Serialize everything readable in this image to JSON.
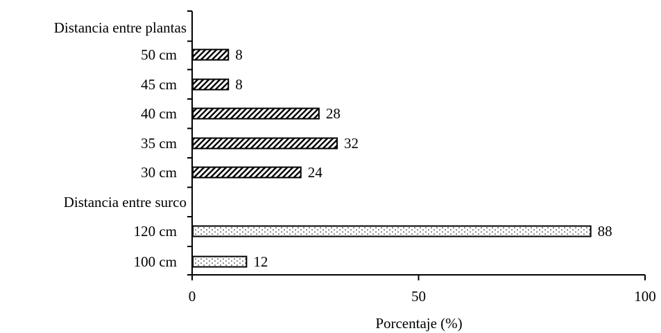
{
  "chart_data": {
    "type": "bar",
    "orientation": "horizontal",
    "categories": [
      "Distancia entre plantas",
      "50 cm",
      "45 cm",
      "40 cm",
      "35 cm",
      "30 cm",
      "Distancia entre surco",
      "120 cm",
      "100 cm"
    ],
    "values": [
      null,
      8,
      8,
      28,
      32,
      24,
      null,
      88,
      12
    ],
    "patterns": [
      "none",
      "diagonal",
      "diagonal",
      "diagonal",
      "diagonal",
      "diagonal",
      "none",
      "dotted",
      "dotted"
    ],
    "xlabel": "Porcentaje (%)",
    "ylabel": "",
    "xlim": [
      0,
      100
    ],
    "xticks": [
      0,
      50,
      100
    ],
    "grid": false,
    "legend": "none"
  }
}
